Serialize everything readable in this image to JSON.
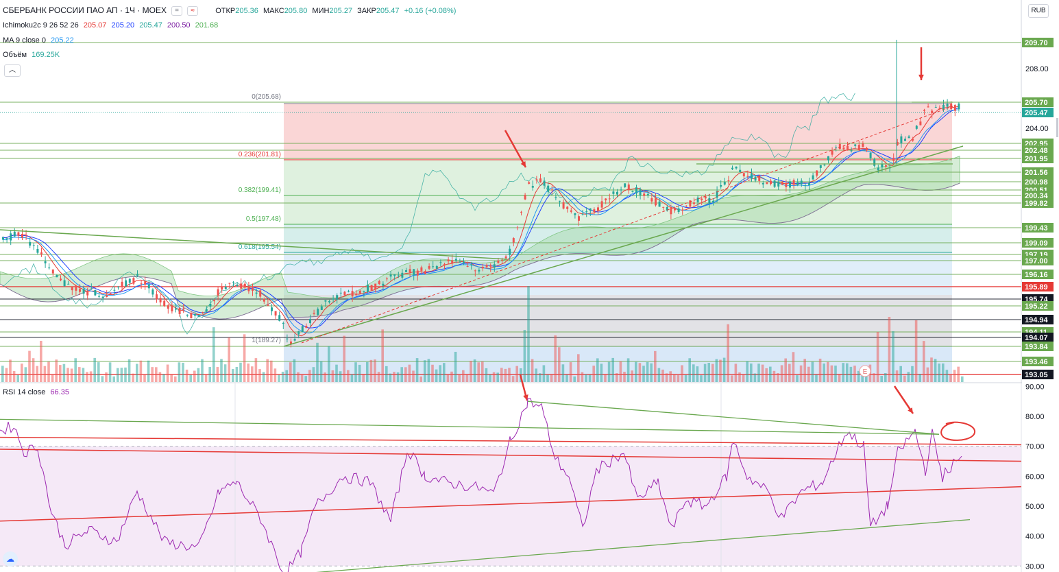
{
  "header": {
    "symbol": "СБЕРБАНК РОССИИ ПАО АП · 1Ч · MOEX",
    "open_label": "ОТКР",
    "open": "205.36",
    "high_label": "МАКС",
    "high": "205.80",
    "low_label": "МИН",
    "low": "205.27",
    "close_label": "ЗАКР",
    "close": "205.47",
    "change": "+0.16 (+0.08%)"
  },
  "indicators": {
    "ichimoku": {
      "name": "Ichimoku2c 9 26 52 26",
      "values": [
        "205.07",
        "205.20",
        "205.47",
        "200.50",
        "201.68"
      ],
      "colors": [
        "#e53935",
        "#1e40ff",
        "#26a69a",
        "#7b1fa2",
        "#4caf50"
      ]
    },
    "ma": {
      "name": "MA 9 close 0",
      "value": "205.22",
      "color": "#2196f3"
    },
    "volume": {
      "name": "Объём",
      "value": "169.25K",
      "color": "#26a69a"
    },
    "rsi": {
      "name": "RSI 14 close",
      "value": "66.35",
      "color": "#9c27b0"
    }
  },
  "currency_button": "RUB",
  "collapse_icon": "chevron-up-icon",
  "chart_data": {
    "type": "candlestick",
    "price_axis": {
      "range": [
        193.0,
        210.6
      ],
      "ticks": [
        "208.00",
        "204.00"
      ],
      "level_labels": [
        {
          "value": 209.7,
          "text": "209.70",
          "bg": "#6aa84f"
        },
        {
          "value": 205.7,
          "text": "205.70",
          "bg": "#6aa84f"
        },
        {
          "value": 205.47,
          "text": "205.47",
          "bg": "#26a69a"
        },
        {
          "value": 202.95,
          "text": "202.95",
          "bg": "#6aa84f"
        },
        {
          "value": 202.48,
          "text": "202.48",
          "bg": "#6aa84f"
        },
        {
          "value": 201.95,
          "text": "201.95",
          "bg": "#6aa84f"
        },
        {
          "value": 201.56,
          "text": "201.56",
          "bg": "#6aa84f"
        },
        {
          "value": 200.98,
          "text": "200.98",
          "bg": "#6aa84f"
        },
        {
          "value": 200.51,
          "text": "200.51",
          "bg": "#6aa84f"
        },
        {
          "value": 200.34,
          "text": "200.34",
          "bg": "#6aa84f"
        },
        {
          "value": 199.82,
          "text": "199.82",
          "bg": "#6aa84f"
        },
        {
          "value": 199.43,
          "text": "199.43",
          "bg": "#6aa84f"
        },
        {
          "value": 199.09,
          "text": "199.09",
          "bg": "#6aa84f"
        },
        {
          "value": 197.19,
          "text": "197.19",
          "bg": "#6aa84f"
        },
        {
          "value": 197.0,
          "text": "197.00",
          "bg": "#6aa84f"
        },
        {
          "value": 196.16,
          "text": "196.16",
          "bg": "#6aa84f"
        },
        {
          "value": 195.89,
          "text": "195.89",
          "bg": "#e53935"
        },
        {
          "value": 195.74,
          "text": "195.74",
          "bg": "#131722"
        },
        {
          "value": 195.22,
          "text": "195.22",
          "bg": "#6aa84f"
        },
        {
          "value": 194.94,
          "text": "194.94",
          "bg": "#131722"
        },
        {
          "value": 194.11,
          "text": "194.11",
          "bg": "#6aa84f"
        },
        {
          "value": 194.07,
          "text": "194.07",
          "bg": "#131722"
        },
        {
          "value": 193.84,
          "text": "193.84",
          "bg": "#6aa84f"
        },
        {
          "value": 193.46,
          "text": "193.46",
          "bg": "#6aa84f"
        },
        {
          "value": 193.05,
          "text": "193.05",
          "bg": "#131722"
        }
      ]
    },
    "fibonacci": [
      {
        "label": "0(205.68)",
        "color": "#787b86"
      },
      {
        "label": "0.236(201.81)",
        "color": "#e53935"
      },
      {
        "label": "0.382(199.41)",
        "color": "#4caf50"
      },
      {
        "label": "0.5(197.48)",
        "color": "#4caf50"
      },
      {
        "label": "0.618(195.54)",
        "color": "#26a69a"
      },
      {
        "label": "1(189.27)",
        "color": "#787b86"
      }
    ],
    "earnings_marker": "E",
    "rsi": {
      "range": [
        28,
        91
      ],
      "ticks": [
        "90.00",
        "80.00",
        "70.00",
        "60.00",
        "50.00",
        "40.00",
        "30.00"
      ],
      "overbought": 70,
      "oversold": 30
    }
  }
}
